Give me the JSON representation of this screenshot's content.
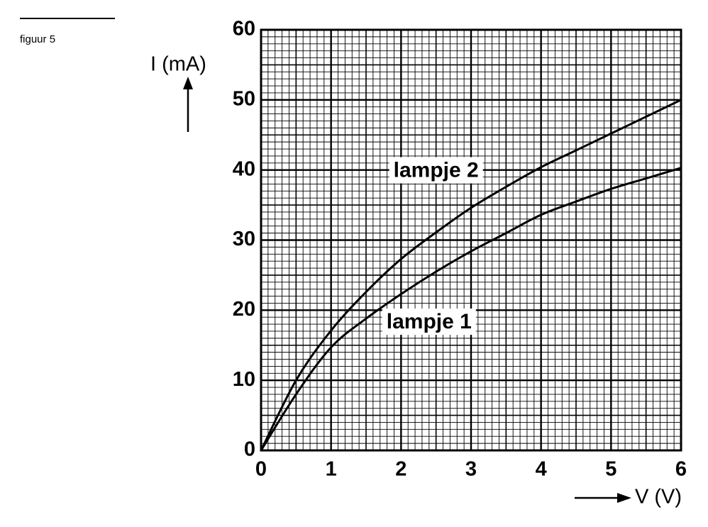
{
  "chart_data": {
    "type": "line",
    "caption": "figuur 5",
    "x_label": "V (V)",
    "y_label": "I (mA)",
    "x": [
      0,
      0.5,
      1,
      1.5,
      2,
      2.5,
      3,
      3.5,
      4,
      4.5,
      5,
      5.5,
      6
    ],
    "series": [
      {
        "name": "lampje 1",
        "color": "#000000",
        "values": [
          0,
          8,
          14.7,
          18.8,
          22.3,
          25.5,
          28.4,
          31,
          33.6,
          35.5,
          37.3,
          38.8,
          40.3
        ]
      },
      {
        "name": "lampje 2",
        "color": "#000000",
        "values": [
          0,
          10,
          17.1,
          22.6,
          27.3,
          31.1,
          34.6,
          37.6,
          40.4,
          42.8,
          45.2,
          47.6,
          50
        ]
      }
    ],
    "xlim": [
      0,
      6
    ],
    "ylim": [
      0,
      60
    ],
    "xticks": [
      0,
      1,
      2,
      3,
      4,
      5,
      6
    ],
    "yticks": [
      0,
      10,
      20,
      30,
      40,
      50,
      60
    ],
    "grid": true,
    "minor_grid_step": {
      "x": 0.1,
      "y": 1
    }
  }
}
